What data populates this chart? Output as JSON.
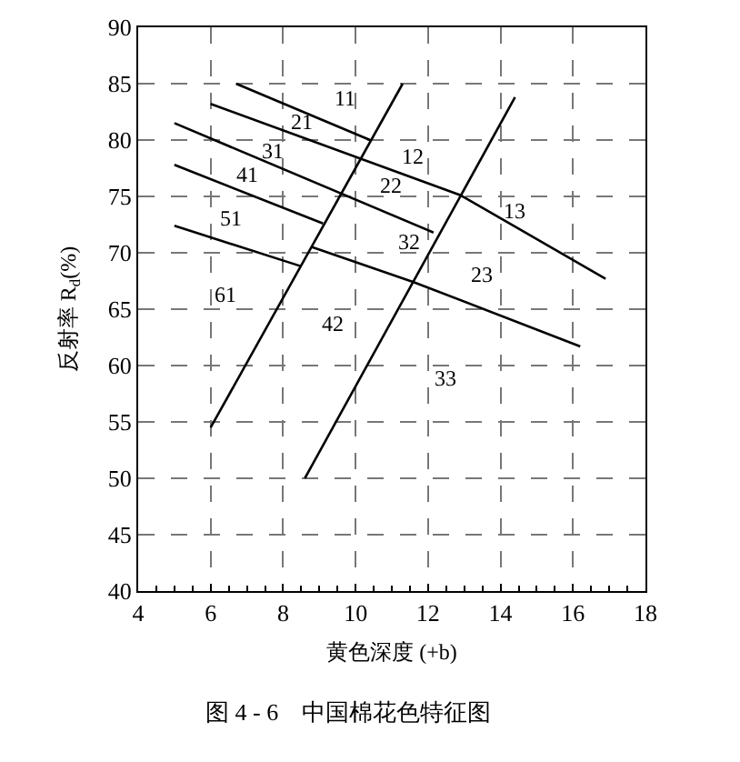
{
  "chart_data": {
    "type": "line",
    "xlabel": "黄色深度 (+b)",
    "ylabel": "反射率 R$_{d}$(%)",
    "xlim": [
      4,
      18
    ],
    "xticks": [
      4,
      6,
      8,
      10,
      12,
      14,
      16,
      18
    ],
    "ylim": [
      40,
      90
    ],
    "yticks": [
      40,
      45,
      50,
      55,
      60,
      65,
      70,
      75,
      80,
      85,
      90
    ],
    "grid": true,
    "series": [
      {
        "color": "#000000",
        "x": [
          6.7,
          10.4
        ],
        "values": [
          85.0,
          80.0
        ]
      },
      {
        "color": "#000000",
        "x": [
          6.0,
          12.9,
          16.9
        ],
        "values": [
          83.2,
          75.1,
          67.7
        ]
      },
      {
        "color": "#000000",
        "x": [
          5.0,
          12.15
        ],
        "values": [
          81.5,
          71.8
        ]
      },
      {
        "color": "#000000",
        "x": [
          5.0,
          9.1
        ],
        "values": [
          77.8,
          72.6
        ]
      },
      {
        "color": "#000000",
        "x": [
          5.0,
          8.5
        ],
        "values": [
          72.4,
          68.8
        ]
      },
      {
        "color": "#000000",
        "x": [
          8.8,
          11.6,
          16.2
        ],
        "values": [
          70.5,
          67.4,
          61.7
        ]
      },
      {
        "color": "#000000",
        "x": [
          6.0,
          11.3
        ],
        "values": [
          54.5,
          85.0
        ]
      },
      {
        "color": "#000000",
        "x": [
          8.6,
          14.4
        ],
        "values": [
          50.0,
          83.8
        ]
      }
    ],
    "annotations": [
      "11",
      "21",
      "31",
      "41",
      "51",
      "61",
      "12",
      "22",
      "32",
      "42",
      "13",
      "23",
      "33",
      "图 4 - 6　中国棉花色特征图"
    ]
  }
}
